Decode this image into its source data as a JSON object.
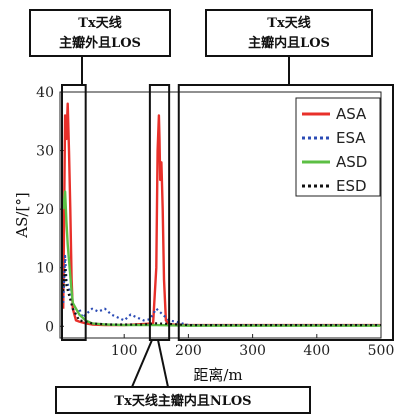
{
  "chart_data": {
    "type": "line",
    "xlabel": "距离/m",
    "ylabel": "AS/[°]",
    "xlim": [
      0,
      500
    ],
    "ylim": [
      -2,
      40
    ],
    "xticks": [
      "100",
      "200",
      "300",
      "400",
      "500"
    ],
    "yticks": [
      "0",
      "10",
      "20",
      "30",
      "40"
    ],
    "legend_position": "top-right",
    "series": [
      {
        "name": "ASA",
        "color": "#e8302a",
        "style": "solid",
        "x": [
          5,
          8,
          10,
          12,
          14,
          16,
          18,
          20,
          25,
          30,
          40,
          50,
          70,
          100,
          145,
          150,
          152,
          154,
          155,
          156,
          158,
          160,
          162,
          165,
          170,
          200,
          300,
          400,
          500
        ],
        "y": [
          3,
          36,
          32,
          38,
          30,
          20,
          8,
          3,
          1,
          0.8,
          0.5,
          0.3,
          0.2,
          0.2,
          0.5,
          10,
          30,
          36,
          32,
          25,
          28,
          20,
          8,
          1,
          0.3,
          0.2,
          0.2,
          0.2,
          0.2
        ]
      },
      {
        "name": "ESA",
        "color": "#2b4bb5",
        "style": "dotted",
        "x": [
          5,
          8,
          10,
          15,
          20,
          25,
          30,
          35,
          40,
          50,
          60,
          70,
          80,
          90,
          100,
          110,
          120,
          130,
          140,
          150,
          155,
          160,
          170,
          180,
          190,
          200,
          300,
          400,
          500
        ],
        "y": [
          4,
          12,
          8,
          6,
          3,
          2,
          3,
          1.5,
          2,
          3,
          2.5,
          3,
          2,
          1.5,
          1,
          2,
          1.5,
          1,
          1.2,
          3,
          2.5,
          2,
          1,
          0.8,
          0.5,
          0.2,
          0.2,
          0.2,
          0.2
        ]
      },
      {
        "name": "ASD",
        "color": "#5cbf44",
        "style": "solid",
        "x": [
          5,
          8,
          10,
          12,
          15,
          18,
          20,
          25,
          30,
          40,
          50,
          70,
          100,
          150,
          200,
          300,
          400,
          500
        ],
        "y": [
          20,
          23,
          18,
          14,
          10,
          6,
          4,
          3,
          2,
          1,
          0.5,
          0.3,
          0.2,
          0.2,
          0.1,
          0.1,
          0.1,
          0.1
        ]
      },
      {
        "name": "ESD",
        "color": "#111111",
        "style": "dotted",
        "x": [
          5,
          8,
          10,
          15,
          20,
          25,
          30,
          40,
          50,
          60,
          80,
          100,
          130,
          150,
          170,
          200,
          300,
          400,
          500
        ],
        "y": [
          6,
          10,
          7,
          5,
          3,
          2,
          1,
          0.8,
          0.5,
          0.4,
          0.3,
          0.3,
          0.3,
          0.5,
          0.4,
          0.2,
          0.2,
          0.2,
          0.2
        ]
      }
    ],
    "annotations": [
      {
        "id": "left",
        "line1": "Tx天线",
        "line2": "主瓣外且LOS"
      },
      {
        "id": "right",
        "line1": "Tx天线",
        "line2": "主瓣内且LOS"
      },
      {
        "id": "bottom",
        "line1": "Tx天线主瓣内且NLOS"
      }
    ]
  }
}
